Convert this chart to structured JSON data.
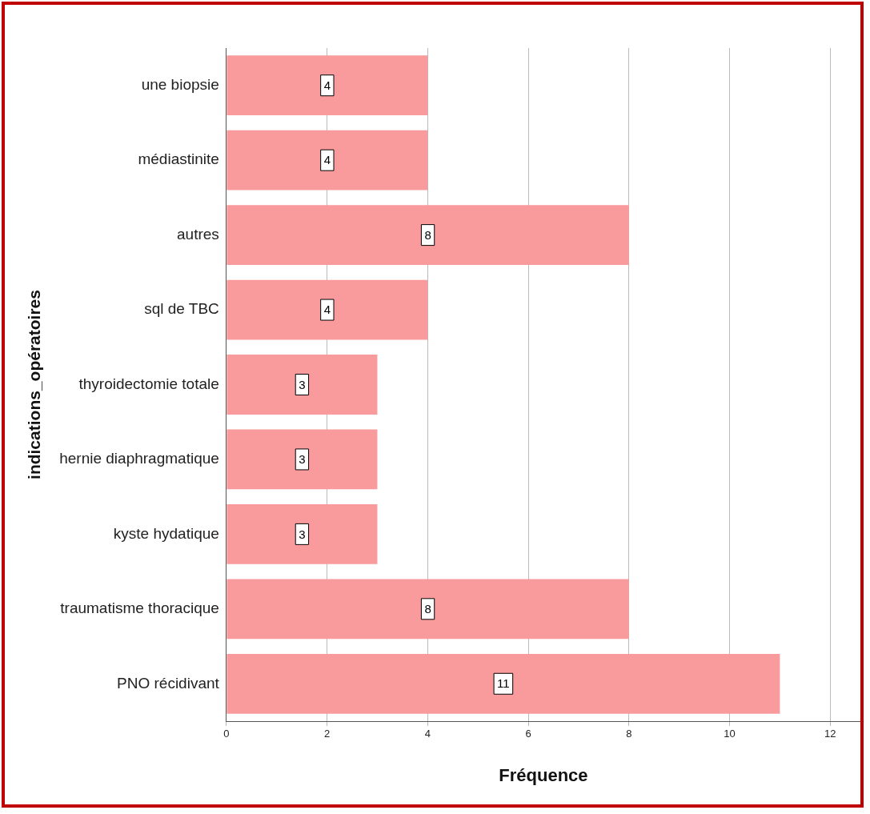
{
  "chart_data": {
    "type": "bar",
    "orientation": "horizontal",
    "xlabel": "Fréquence",
    "ylabel": "indications_opératoires",
    "categories": [
      "une biopsie",
      "médiastinite",
      "autres",
      "sql de TBC",
      "thyroidectomie totale",
      "hernie diaphragmatique",
      "kyste hydatique",
      "traumatisme thoracique",
      "PNO récidivant"
    ],
    "values": [
      4,
      4,
      8,
      4,
      3,
      3,
      3,
      8,
      11
    ],
    "color": "#f99b9c",
    "xlim": [
      0,
      12.6
    ],
    "xticks": [
      0,
      2,
      4,
      6,
      8,
      10,
      12
    ],
    "grid": "x",
    "legend": false,
    "data_labels": true
  }
}
